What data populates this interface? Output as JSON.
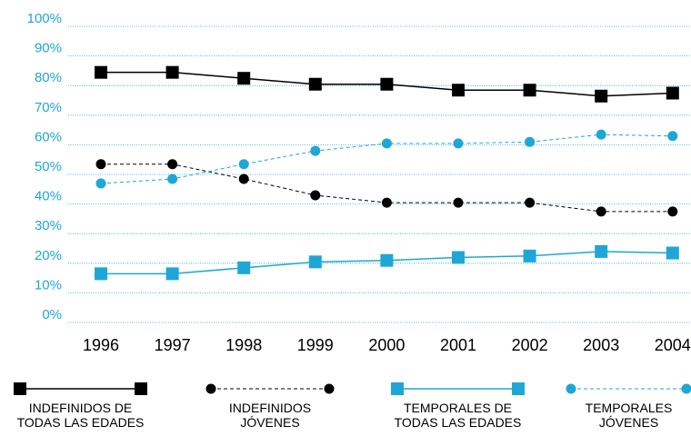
{
  "chart_data": {
    "type": "line",
    "categories": [
      "1996",
      "1997",
      "1998",
      "1999",
      "2000",
      "2001",
      "2002",
      "2003",
      "2004"
    ],
    "series": [
      {
        "name": "INDEFINIDOS DE TODAS LAS EDADES",
        "color": "#000000",
        "marker": "square",
        "dash": false,
        "values": [
          82,
          82,
          80,
          78,
          78,
          76,
          76,
          74,
          75
        ]
      },
      {
        "name": "INDEFINIDOS JÓVENES",
        "color": "#000000",
        "marker": "circle",
        "dash": true,
        "values": [
          51,
          51,
          46,
          40.5,
          38,
          38,
          38,
          35,
          35
        ]
      },
      {
        "name": "TEMPORALES DE TODAS LAS EDADES",
        "color": "#1ea7d6",
        "marker": "square",
        "dash": false,
        "values": [
          14,
          14,
          16,
          18,
          18.5,
          19.5,
          20,
          21.5,
          21
        ]
      },
      {
        "name": "TEMPORALES JÓVENES",
        "color": "#1ea7d6",
        "marker": "circle",
        "dash": true,
        "values": [
          44.5,
          46,
          51,
          55.5,
          58,
          58,
          58.5,
          61,
          60.5
        ]
      }
    ],
    "ylim": [
      0,
      100
    ],
    "yticks": [
      {
        "value": 0,
        "label": "0%"
      },
      {
        "value": 10,
        "label": "10%"
      },
      {
        "value": 20,
        "label": "20%"
      },
      {
        "value": 30,
        "label": "30%"
      },
      {
        "value": 40,
        "label": "40%"
      },
      {
        "value": 50,
        "label": "50%"
      },
      {
        "value": 60,
        "label": "60%"
      },
      {
        "value": 70,
        "label": "70%"
      },
      {
        "value": 80,
        "label": "80%"
      },
      {
        "value": 90,
        "label": "90%"
      },
      {
        "value": 100,
        "label": "100%"
      }
    ],
    "grid": true,
    "axis_color": "#1ea7d6",
    "legend": "bottom"
  }
}
